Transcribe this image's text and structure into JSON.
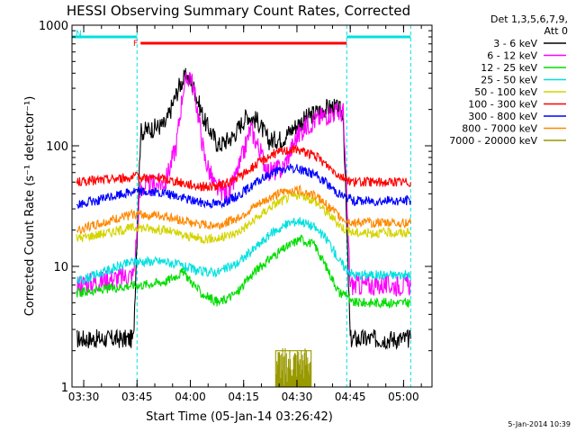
{
  "chart_data": {
    "type": "line",
    "title": "HESSI Observing Summary Count Rates, Corrected",
    "xlabel": "Start Time (05-Jan-14 03:26:42)",
    "ylabel": "Corrected Count Rate (s⁻¹ detector⁻¹)",
    "yscale": "log",
    "xlim": [
      "03:26:42",
      "05:08:00"
    ],
    "ylim": [
      1,
      1000
    ],
    "x_ticks": [
      "03:30",
      "03:45",
      "04:00",
      "04:15",
      "04:30",
      "04:45",
      "05:00"
    ],
    "y_ticks": [
      "1",
      "10",
      "100",
      "1000"
    ],
    "legend_header": [
      "Det 1,3,5,6,7,9,",
      "Att 0"
    ],
    "legend_position": "right",
    "footer_date": "5-Jan-2014 10:39",
    "night_markers": {
      "color": "#00e0e0",
      "times": [
        "03:45",
        "04:44",
        "05:02"
      ]
    },
    "state_bars": [
      {
        "label": "N",
        "color": "#00e0e0",
        "start": "03:26:42",
        "end": "03:45"
      },
      {
        "label": "",
        "color": "#00e0e0",
        "start": "04:44",
        "end": "05:02"
      },
      {
        "label": "F",
        "color": "#ff0000",
        "start": "03:46",
        "end": "04:44"
      }
    ],
    "series": [
      {
        "name": "3 - 6 keV",
        "color": "#000000",
        "points": [
          [
            "03:28",
            2.5
          ],
          [
            "03:44",
            2.5
          ],
          [
            "03:46",
            130
          ],
          [
            "03:53",
            150
          ],
          [
            "03:55",
            220
          ],
          [
            "03:57",
            320
          ],
          [
            "03:59",
            380
          ],
          [
            "04:01",
            300
          ],
          [
            "04:04",
            160
          ],
          [
            "04:08",
            100
          ],
          [
            "04:12",
            120
          ],
          [
            "04:16",
            180
          ],
          [
            "04:19",
            160
          ],
          [
            "04:22",
            110
          ],
          [
            "04:26",
            115
          ],
          [
            "04:30",
            150
          ],
          [
            "04:34",
            180
          ],
          [
            "04:37",
            200
          ],
          [
            "04:40",
            210
          ],
          [
            "04:43",
            190
          ],
          [
            "04:45",
            2.5
          ],
          [
            "05:02",
            2.5
          ]
        ]
      },
      {
        "name": "6 - 12 keV",
        "color": "#ff00ff",
        "points": [
          [
            "03:28",
            7
          ],
          [
            "03:44",
            8.5
          ],
          [
            "03:46",
            45
          ],
          [
            "03:53",
            50
          ],
          [
            "03:56",
            100
          ],
          [
            "03:58",
            300
          ],
          [
            "04:00",
            400
          ],
          [
            "04:02",
            200
          ],
          [
            "04:04",
            80
          ],
          [
            "04:07",
            45
          ],
          [
            "04:11",
            40
          ],
          [
            "04:14",
            70
          ],
          [
            "04:17",
            140
          ],
          [
            "04:19",
            100
          ],
          [
            "04:22",
            60
          ],
          [
            "04:26",
            65
          ],
          [
            "04:30",
            120
          ],
          [
            "04:33",
            150
          ],
          [
            "04:37",
            175
          ],
          [
            "04:40",
            190
          ],
          [
            "04:43",
            190
          ],
          [
            "04:45",
            7
          ],
          [
            "05:02",
            7
          ]
        ]
      },
      {
        "name": "12 - 25 keV",
        "color": "#00dd00",
        "points": [
          [
            "03:28",
            6
          ],
          [
            "03:44",
            7
          ],
          [
            "03:46",
            7
          ],
          [
            "03:53",
            7.5
          ],
          [
            "03:58",
            9
          ],
          [
            "04:03",
            6
          ],
          [
            "04:08",
            5
          ],
          [
            "04:13",
            6
          ],
          [
            "04:18",
            9
          ],
          [
            "04:23",
            12
          ],
          [
            "04:28",
            15
          ],
          [
            "04:31",
            17
          ],
          [
            "04:35",
            15
          ],
          [
            "04:39",
            9
          ],
          [
            "04:42",
            6
          ],
          [
            "04:44",
            6
          ],
          [
            "04:45",
            5
          ],
          [
            "05:02",
            5
          ]
        ]
      },
      {
        "name": "25 - 50 keV",
        "color": "#00e0e0",
        "points": [
          [
            "03:28",
            7.5
          ],
          [
            "03:44",
            11
          ],
          [
            "03:46",
            11
          ],
          [
            "03:53",
            11
          ],
          [
            "03:58",
            10
          ],
          [
            "04:03",
            9
          ],
          [
            "04:08",
            9
          ],
          [
            "04:13",
            10.5
          ],
          [
            "04:18",
            14
          ],
          [
            "04:23",
            19
          ],
          [
            "04:28",
            23
          ],
          [
            "04:31",
            24
          ],
          [
            "04:35",
            21
          ],
          [
            "04:39",
            16
          ],
          [
            "04:42",
            11
          ],
          [
            "04:44",
            9.5
          ],
          [
            "04:46",
            8.5
          ],
          [
            "05:02",
            8.5
          ]
        ]
      },
      {
        "name": "50 - 100 keV",
        "color": "#d4d400",
        "points": [
          [
            "03:28",
            17
          ],
          [
            "03:44",
            21
          ],
          [
            "03:46",
            21
          ],
          [
            "03:53",
            20
          ],
          [
            "03:58",
            18
          ],
          [
            "04:03",
            17
          ],
          [
            "04:08",
            17
          ],
          [
            "04:13",
            19
          ],
          [
            "04:18",
            24
          ],
          [
            "04:23",
            32
          ],
          [
            "04:28",
            38
          ],
          [
            "04:31",
            39
          ],
          [
            "04:35",
            35
          ],
          [
            "04:39",
            27
          ],
          [
            "04:42",
            22
          ],
          [
            "04:44",
            20
          ],
          [
            "04:46",
            19
          ],
          [
            "05:02",
            19
          ]
        ]
      },
      {
        "name": "100 - 300 keV",
        "color": "#ff0000",
        "points": [
          [
            "03:28",
            50
          ],
          [
            "03:44",
            55
          ],
          [
            "03:46",
            55
          ],
          [
            "03:53",
            53
          ],
          [
            "03:58",
            49
          ],
          [
            "04:03",
            46
          ],
          [
            "04:08",
            46
          ],
          [
            "04:13",
            53
          ],
          [
            "04:18",
            68
          ],
          [
            "04:23",
            85
          ],
          [
            "04:28",
            93
          ],
          [
            "04:31",
            92
          ],
          [
            "04:35",
            83
          ],
          [
            "04:39",
            67
          ],
          [
            "04:42",
            57
          ],
          [
            "04:44",
            53
          ],
          [
            "04:46",
            50
          ],
          [
            "05:02",
            50
          ]
        ]
      },
      {
        "name": "300 - 800 keV",
        "color": "#0000ff",
        "points": [
          [
            "03:28",
            32
          ],
          [
            "03:44",
            42
          ],
          [
            "03:46",
            42
          ],
          [
            "03:53",
            40
          ],
          [
            "03:58",
            37
          ],
          [
            "04:03",
            34
          ],
          [
            "04:08",
            33
          ],
          [
            "04:13",
            38
          ],
          [
            "04:18",
            48
          ],
          [
            "04:23",
            60
          ],
          [
            "04:28",
            65
          ],
          [
            "04:31",
            64
          ],
          [
            "04:35",
            58
          ],
          [
            "04:39",
            47
          ],
          [
            "04:42",
            40
          ],
          [
            "04:44",
            37
          ],
          [
            "04:46",
            35
          ],
          [
            "05:02",
            35
          ]
        ]
      },
      {
        "name": "800 - 7000 keV",
        "color": "#ff8800",
        "points": [
          [
            "03:28",
            20
          ],
          [
            "03:44",
            27
          ],
          [
            "03:46",
            27
          ],
          [
            "03:53",
            26
          ],
          [
            "03:58",
            24
          ],
          [
            "04:03",
            22
          ],
          [
            "04:08",
            22
          ],
          [
            "04:13",
            25
          ],
          [
            "04:18",
            31
          ],
          [
            "04:23",
            38
          ],
          [
            "04:28",
            43
          ],
          [
            "04:31",
            43
          ],
          [
            "04:35",
            39
          ],
          [
            "04:39",
            31
          ],
          [
            "04:42",
            26
          ],
          [
            "04:44",
            24
          ],
          [
            "04:46",
            23
          ],
          [
            "05:02",
            23
          ]
        ]
      },
      {
        "name": "7000 - 20000 keV",
        "color": "#999900",
        "points": [
          [
            "04:24",
            1
          ],
          [
            "04:24",
            2
          ],
          [
            "04:34",
            2
          ],
          [
            "04:34",
            1
          ]
        ]
      }
    ]
  }
}
